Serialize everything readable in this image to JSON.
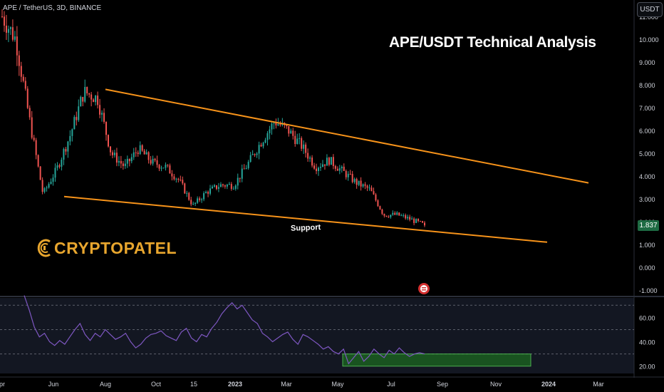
{
  "header": {
    "symbol_label": "APE / TetherUS, 3D, BINANCE",
    "currency_button": "USDT"
  },
  "overlay": {
    "title": "APE/USDT Technical Analysis",
    "support_label": "Support",
    "logo_text": "CRYPTOPATEL"
  },
  "price_badge": "1.837",
  "colors": {
    "background": "#000000",
    "up_candle": "#26a69a",
    "down_candle": "#ef5350",
    "trendline": "#f7931a",
    "rsi_line": "#7e57c2",
    "rsi_zone": "#1b5e20",
    "logo": "#e8a62e"
  },
  "chart_data": [
    {
      "type": "candlestick",
      "title": "APE / TetherUS, 3D, BINANCE",
      "x_ticks": [
        "Apr",
        "Jun",
        "Aug",
        "Oct",
        "15",
        "2023",
        "Mar",
        "May",
        "Jul",
        "Sep",
        "Nov",
        "2024",
        "Mar"
      ],
      "y_ticks": [
        "-1.000",
        "0.000",
        "1.000",
        "2.000",
        "3.000",
        "4.000",
        "5.000",
        "6.000",
        "7.000",
        "8.000",
        "9.000",
        "10.000",
        "11.000"
      ],
      "ylim": [
        -1.0,
        11.5
      ],
      "last_price": 1.837,
      "series": [
        {
          "name": "price",
          "points": [
            [
              "Apr",
              11.0
            ],
            [
              "Apr",
              10.0
            ],
            [
              "May",
              6.5
            ],
            [
              "Jun",
              3.2
            ],
            [
              "Jun",
              4.3
            ],
            [
              "Jul",
              5.8
            ],
            [
              "Aug",
              7.7
            ],
            [
              "Aug",
              7.4
            ],
            [
              "Sep",
              5.0
            ],
            [
              "Sep",
              4.4
            ],
            [
              "Oct",
              5.2
            ],
            [
              "Oct",
              4.6
            ],
            [
              "Nov",
              4.4
            ],
            [
              "Nov",
              3.8
            ],
            [
              "15",
              2.7
            ],
            [
              "Dec",
              3.3
            ],
            [
              "Dec",
              3.6
            ],
            [
              "2023",
              3.6
            ],
            [
              "2023",
              4.5
            ],
            [
              "Feb",
              5.5
            ],
            [
              "Feb",
              6.4
            ],
            [
              "Mar",
              6.0
            ],
            [
              "Mar",
              5.3
            ],
            [
              "Apr",
              4.4
            ],
            [
              "Apr",
              4.7
            ],
            [
              "May",
              4.2
            ],
            [
              "May",
              3.7
            ],
            [
              "Jun",
              3.4
            ],
            [
              "Jun",
              2.3
            ],
            [
              "Jul",
              2.3
            ],
            [
              "Jul",
              2.1
            ],
            [
              "Aug",
              1.837
            ]
          ]
        }
      ],
      "annotations": [
        {
          "type": "trendline",
          "label": "",
          "from": [
            "Aug",
            7.8
          ],
          "to": [
            "Mar",
            3.7
          ]
        },
        {
          "type": "trendline",
          "label": "Support",
          "from": [
            "Jun",
            3.1
          ],
          "to": [
            "Mar",
            1.1
          ]
        }
      ]
    },
    {
      "type": "line",
      "title": "",
      "y_ticks": [
        "20.00",
        "40.00",
        "60.00"
      ],
      "ylim": [
        14,
        76
      ],
      "series": [
        {
          "name": "RSI",
          "values": [
            78,
            66,
            52,
            44,
            47,
            40,
            37,
            41,
            38,
            44,
            50,
            55,
            46,
            41,
            47,
            44,
            50,
            46,
            42,
            44,
            47,
            40,
            35,
            38,
            43,
            46,
            47,
            49,
            45,
            43,
            41,
            48,
            51,
            43,
            40,
            46,
            44,
            51,
            56,
            63,
            68,
            72,
            67,
            70,
            64,
            58,
            55,
            47,
            44,
            40,
            43,
            46,
            48,
            42,
            38,
            46,
            44,
            41,
            38,
            34,
            36,
            32,
            30,
            34,
            22,
            27,
            32,
            24,
            28,
            34,
            30,
            27,
            33,
            30,
            35,
            31,
            28,
            30,
            31,
            30
          ]
        }
      ],
      "zone": {
        "from": 20,
        "to": 30
      },
      "levels": [
        30,
        50,
        70
      ]
    }
  ]
}
